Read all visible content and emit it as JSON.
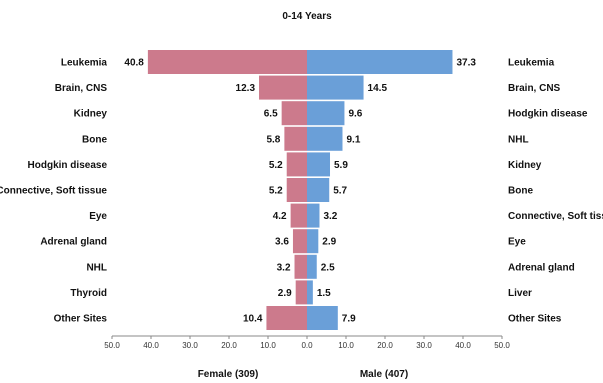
{
  "chart_data": {
    "type": "bar",
    "orientation": "horizontal-butterfly",
    "title": "0-14 Years",
    "xlim": [
      -50,
      50
    ],
    "x_ticks": [
      "50.0",
      "40.0",
      "30.0",
      "20.0",
      "10.0",
      "0.0",
      "10.0",
      "20.0",
      "30.0",
      "40.0",
      "50.0"
    ],
    "grid": false,
    "colors": {
      "female": "#cc7a8c",
      "male": "#6a9fd8"
    },
    "female": {
      "label": "Female (309)",
      "categories": [
        "Leukemia",
        "Brain, CNS",
        "Kidney",
        "Bone",
        "Hodgkin disease",
        "Connective, Soft tissue",
        "Eye",
        "Adrenal gland",
        "NHL",
        "Thyroid",
        "Other Sites"
      ],
      "values": [
        40.8,
        12.3,
        6.5,
        5.8,
        5.2,
        5.2,
        4.2,
        3.6,
        3.2,
        2.9,
        10.4
      ],
      "value_labels": [
        "40.8",
        "12.3",
        "6.5",
        "5.8",
        "5.2",
        "5.2",
        "4.2",
        "3.6",
        "3.2",
        "2.9",
        "10.4"
      ]
    },
    "male": {
      "label": "Male (407)",
      "categories": [
        "Leukemia",
        "Brain, CNS",
        "Hodgkin disease",
        "NHL",
        "Kidney",
        "Bone",
        "Connective, Soft tissue",
        "Eye",
        "Adrenal gland",
        "Liver",
        "Other Sites"
      ],
      "values": [
        37.3,
        14.5,
        9.6,
        9.1,
        5.9,
        5.7,
        3.2,
        2.9,
        2.5,
        1.5,
        7.9
      ],
      "value_labels": [
        "37.3",
        "14.5",
        "9.6",
        "9.1",
        "5.9",
        "5.7",
        "3.2",
        "2.9",
        "2.5",
        "1.5",
        "7.9"
      ]
    }
  }
}
